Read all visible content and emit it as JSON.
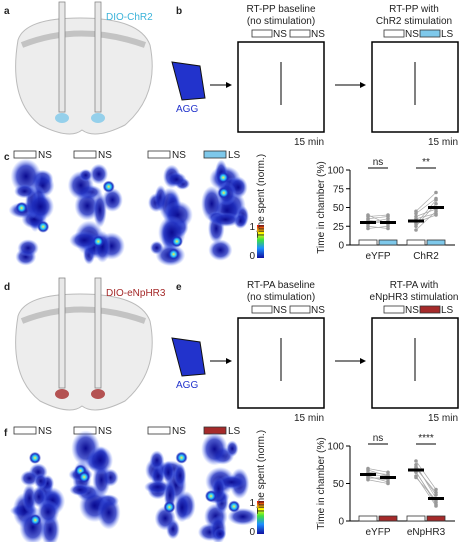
{
  "top": {
    "labels": [
      "a",
      "b",
      "c"
    ],
    "construct": "DIO-ChR2",
    "baseline_title": [
      "RT-PP baseline",
      "(no stimulation)"
    ],
    "stim_title": [
      "RT-PP with",
      "ChR2 stimulation"
    ],
    "baseline_boxes": [
      "NS",
      "NS"
    ],
    "stim_boxes": [
      "NS",
      "LS"
    ],
    "animal": "AGG",
    "durations": [
      "15 min",
      "15 min"
    ],
    "heatmap_boxes": [
      "NS",
      "NS",
      "NS",
      "LS"
    ],
    "colorbar_title": "Time spent (norm.)",
    "colorbar_max": "1",
    "colorbar_min": "0"
  },
  "bottom": {
    "labels": [
      "d",
      "e",
      "f"
    ],
    "construct": "DIO-eNpHR3",
    "baseline_title": [
      "RT-PA baseline",
      "(no stimulation)"
    ],
    "stim_title": [
      "RT-PA with",
      "eNpHR3 stimulation"
    ],
    "baseline_boxes": [
      "NS",
      "NS"
    ],
    "stim_boxes": [
      "NS",
      "LS"
    ],
    "animal": "AGG",
    "durations": [
      "15 min",
      "15 min"
    ],
    "heatmap_boxes": [
      "NS",
      "NS",
      "NS",
      "LS"
    ],
    "colorbar_title": "Time spent (norm.)",
    "colorbar_max": "1",
    "colorbar_min": "0"
  },
  "chart_data": [
    {
      "type": "dot",
      "ylabel": "Time in chamber (%)",
      "ylim": [
        0,
        100
      ],
      "yticks": [
        0,
        25,
        50,
        75,
        100
      ],
      "categories": [
        "eYFP",
        "ChR2"
      ],
      "annotations": [
        "ns",
        "**"
      ],
      "series": [
        {
          "color": "#ffffff",
          "values": [
            30,
            32
          ],
          "points": [
            [
              22,
              28,
              35,
              40,
              30,
              25,
              38,
              33
            ],
            [
              20,
              28,
              45,
              38,
              25,
              30,
              42,
              35
            ]
          ]
        },
        {
          "color": "#7ec8ea",
          "values": [
            30,
            50
          ],
          "points": [
            [
              25,
              32,
              38,
              28,
              35,
              22,
              40,
              30
            ],
            [
              45,
              60,
              70,
              48,
              55,
              40,
              62,
              42
            ]
          ]
        }
      ]
    },
    {
      "type": "dot",
      "ylabel": "Time in chamber (%)",
      "ylim": [
        0,
        100
      ],
      "yticks": [
        0,
        50,
        100
      ],
      "categories": [
        "eYFP",
        "eNpHR3"
      ],
      "annotations": [
        "ns",
        "****"
      ],
      "series": [
        {
          "color": "#ffffff",
          "values": [
            62,
            68
          ],
          "points": [
            [
              55,
              62,
              70,
              58,
              65,
              60,
              68,
              57
            ],
            [
              60,
              72,
              80,
              65,
              75,
              58,
              70,
              66
            ]
          ]
        },
        {
          "color": "#a52a2a",
          "values": [
            58,
            30
          ],
          "points": [
            [
              50,
              60,
              65,
              55,
              62,
              52,
              60,
              58
            ],
            [
              20,
              35,
              42,
              25,
              30,
              28,
              38,
              22
            ]
          ]
        }
      ]
    }
  ]
}
